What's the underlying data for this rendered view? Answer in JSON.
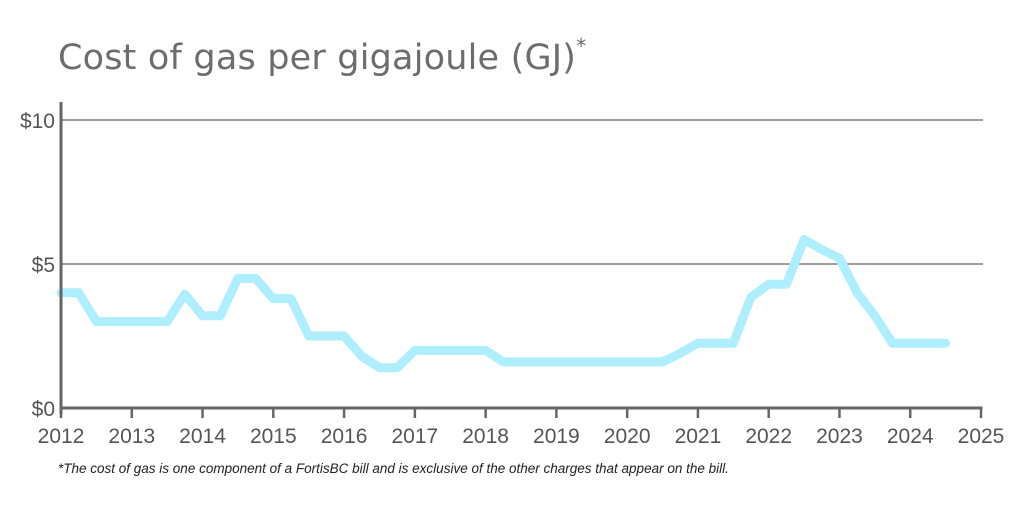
{
  "title": "Cost of gas per gigajoule (GJ)",
  "title_mark": "*",
  "footnote": "*The cost of gas is one component of a FortisBC bill and is exclusive of the other charges that appear on the bill.",
  "colors": {
    "line": "#aeeeff",
    "axis": "#666666",
    "grid": "#666666",
    "text": "#555555"
  },
  "chart_data": {
    "type": "line",
    "title": "Cost of gas per gigajoule (GJ)",
    "xlabel": "",
    "ylabel": "",
    "xlim": [
      2012,
      2025
    ],
    "ylim": [
      0,
      10
    ],
    "x_ticks": [
      "2012",
      "2013",
      "2014",
      "2015",
      "2016",
      "2017",
      "2018",
      "2019",
      "2020",
      "2021",
      "2022",
      "2023",
      "2024",
      "2025"
    ],
    "y_ticks": [
      {
        "value": 0,
        "label": "$0"
      },
      {
        "value": 5,
        "label": "$5"
      },
      {
        "value": 10,
        "label": "$10"
      }
    ],
    "grid": "horizontal",
    "legend": "none",
    "series": [
      {
        "x": [
          2012.0,
          2012.25,
          2012.5,
          2012.75,
          2013.0,
          2013.25,
          2013.5,
          2013.75,
          2014.0,
          2014.25,
          2014.5,
          2014.75,
          2015.0,
          2015.25,
          2015.5,
          2015.75,
          2016.0,
          2016.25,
          2016.5,
          2016.75,
          2017.0,
          2017.25,
          2017.5,
          2017.75,
          2018.0,
          2018.25,
          2018.5,
          2018.75,
          2019.0,
          2019.25,
          2019.5,
          2019.75,
          2020.0,
          2020.25,
          2020.5,
          2020.75,
          2021.0,
          2021.25,
          2021.5,
          2021.75,
          2022.0,
          2022.25,
          2022.5,
          2022.75,
          2023.0,
          2023.25,
          2023.5,
          2023.75,
          2024.0,
          2024.25,
          2024.5
        ],
        "values": [
          4.0,
          4.0,
          3.0,
          3.0,
          3.0,
          3.0,
          3.0,
          3.95,
          3.2,
          3.2,
          4.5,
          4.5,
          3.8,
          3.8,
          2.5,
          2.5,
          2.5,
          1.8,
          1.4,
          1.4,
          2.0,
          2.0,
          2.0,
          2.0,
          2.0,
          1.6,
          1.6,
          1.6,
          1.6,
          1.6,
          1.6,
          1.6,
          1.6,
          1.6,
          1.6,
          1.9,
          2.25,
          2.25,
          2.25,
          3.85,
          4.3,
          4.3,
          5.85,
          5.5,
          5.2,
          4.0,
          3.2,
          2.25,
          2.25,
          2.25,
          2.25
        ]
      }
    ]
  }
}
